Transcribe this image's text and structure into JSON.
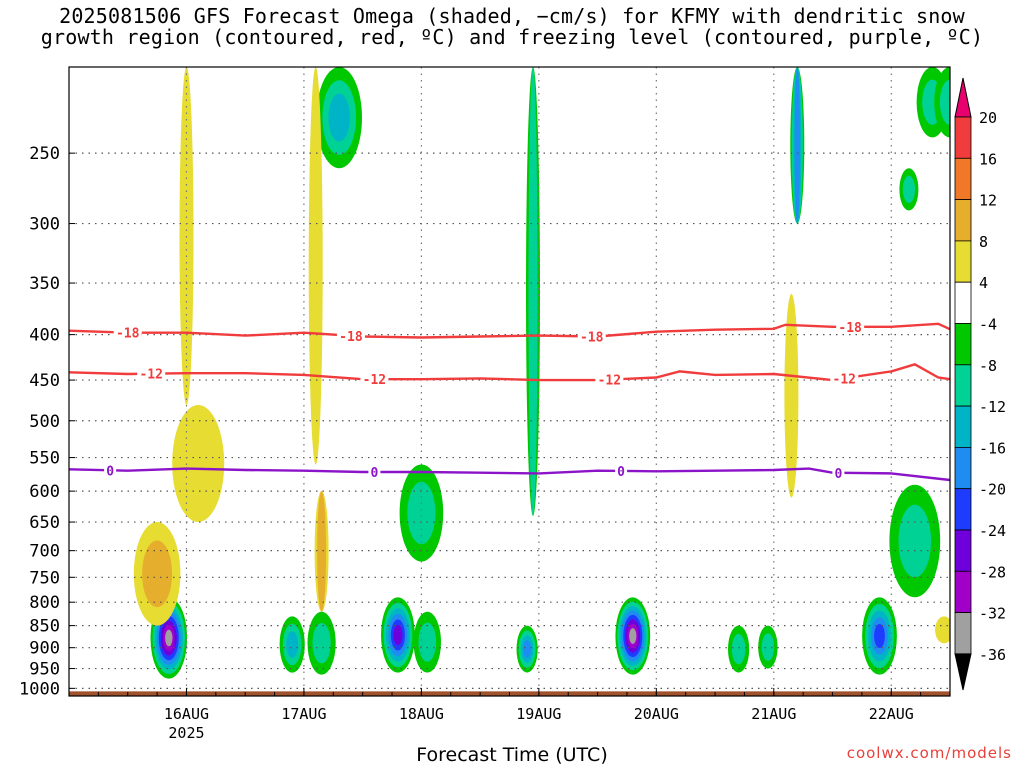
{
  "title_line1": "2025081506 GFS Forecast Omega (shaded, −cm/s) for KFMY with dendritic snow",
  "title_line2": "growth region (contoured, red, ºC) and freezing level (contoured, purple, ºC)",
  "credit": "coolwx.com/models",
  "chart_data": {
    "type": "heatmap",
    "title": "2025081506 GFS Forecast Omega (shaded, −cm/s) for KFMY with dendritic snow growth region (contoured, red, ºC) and freezing level (contoured, purple, ºC)",
    "xlabel": "Forecast Time (UTC)",
    "ylabel": "",
    "x_range": [
      "2025-08-15T06:00Z",
      "2025-08-22T18:00Z"
    ],
    "x_ticks": [
      {
        "label": "16AUG",
        "sub": "2025",
        "day": 1.0
      },
      {
        "label": "17AUG",
        "sub": "",
        "day": 2.0
      },
      {
        "label": "18AUG",
        "sub": "",
        "day": 3.0
      },
      {
        "label": "19AUG",
        "sub": "",
        "day": 4.0
      },
      {
        "label": "20AUG",
        "sub": "",
        "day": 5.0
      },
      {
        "label": "21AUG",
        "sub": "",
        "day": 6.0
      },
      {
        "label": "22AUG",
        "sub": "",
        "day": 7.0
      }
    ],
    "y_axis": "pressure (hPa), log scale, inverted",
    "y_range": [
      1020,
      200
    ],
    "y_ticks": [
      250,
      300,
      350,
      400,
      450,
      500,
      550,
      600,
      650,
      700,
      750,
      800,
      850,
      900,
      950,
      1000
    ],
    "grid": true,
    "colorbar": {
      "labels": [
        "20",
        "16",
        "12",
        "8",
        "4",
        "-4",
        "-8",
        "-12",
        "-16",
        "-20",
        "-24",
        "-28",
        "-32",
        "-36"
      ],
      "colors": [
        "#e8006e",
        "#f03c3c",
        "#f07828",
        "#e6ae2d",
        "#e6dc32",
        "#ffffff",
        "#00c800",
        "#00d296",
        "#00b4c8",
        "#1e8cf0",
        "#1e3cff",
        "#6e00dc",
        "#a000c8",
        "#a0a0a0",
        "#000000"
      ]
    },
    "contours": [
      {
        "name": "dendritic -18",
        "color": "#f03c3c",
        "label": "-18",
        "points": [
          [
            0.0,
            396
          ],
          [
            0.5,
            398
          ],
          [
            1.0,
            398
          ],
          [
            1.5,
            401
          ],
          [
            2.0,
            398
          ],
          [
            2.5,
            402
          ],
          [
            3.0,
            403
          ],
          [
            3.5,
            402
          ],
          [
            4.0,
            401
          ],
          [
            4.5,
            402
          ],
          [
            5.0,
            397
          ],
          [
            5.5,
            395
          ],
          [
            6.0,
            394
          ],
          [
            6.1,
            390
          ],
          [
            6.5,
            392
          ],
          [
            7.0,
            392
          ],
          [
            7.4,
            389
          ],
          [
            7.6,
            400
          ],
          [
            7.5,
            398
          ]
        ]
      },
      {
        "name": "dendritic -12",
        "color": "#f03c3c",
        "label": "-12",
        "points": [
          [
            0.0,
            441
          ],
          [
            0.5,
            443
          ],
          [
            1.0,
            442
          ],
          [
            1.5,
            442
          ],
          [
            2.0,
            444
          ],
          [
            2.5,
            449
          ],
          [
            3.0,
            449
          ],
          [
            3.5,
            448
          ],
          [
            4.0,
            450
          ],
          [
            4.5,
            450
          ],
          [
            5.0,
            447
          ],
          [
            5.2,
            440
          ],
          [
            5.5,
            444
          ],
          [
            6.0,
            443
          ],
          [
            6.5,
            450
          ],
          [
            7.0,
            440
          ],
          [
            7.2,
            432
          ],
          [
            7.4,
            447
          ],
          [
            7.5,
            449
          ]
        ]
      },
      {
        "name": "freezing level 0",
        "color": "#8c14c8",
        "label": "0",
        "points": [
          [
            0.0,
            567
          ],
          [
            0.5,
            569
          ],
          [
            1.0,
            566
          ],
          [
            1.5,
            568
          ],
          [
            2.0,
            569
          ],
          [
            2.5,
            571
          ],
          [
            3.0,
            571
          ],
          [
            3.5,
            572
          ],
          [
            4.0,
            573
          ],
          [
            4.5,
            569
          ],
          [
            5.0,
            570
          ],
          [
            5.5,
            569
          ],
          [
            6.0,
            568
          ],
          [
            6.3,
            566
          ],
          [
            6.5,
            572
          ],
          [
            7.0,
            573
          ],
          [
            7.5,
            583
          ]
        ]
      }
    ],
    "label_positions": [
      {
        "series": 0,
        "day": 0.5
      },
      {
        "series": 0,
        "day": 2.4
      },
      {
        "series": 0,
        "day": 4.45
      },
      {
        "series": 0,
        "day": 6.65
      },
      {
        "series": 1,
        "day": 0.7
      },
      {
        "series": 1,
        "day": 2.6
      },
      {
        "series": 1,
        "day": 4.6
      },
      {
        "series": 1,
        "day": 6.6
      },
      {
        "series": 2,
        "day": 0.35
      },
      {
        "series": 2,
        "day": 2.6
      },
      {
        "series": 2,
        "day": 4.7
      },
      {
        "series": 2,
        "day": 6.55
      }
    ],
    "omega_features": [
      {
        "day": 0.85,
        "p_top": 790,
        "p_bot": 975,
        "peak": -32
      },
      {
        "day": 1.0,
        "p_top": 200,
        "p_bot": 480,
        "peak": 4
      },
      {
        "day": 1.1,
        "p_top": 480,
        "p_bot": 650,
        "peak": 4
      },
      {
        "day": 0.75,
        "p_top": 650,
        "p_bot": 850,
        "peak": 8
      },
      {
        "day": 1.9,
        "p_top": 830,
        "p_bot": 960,
        "peak": -12
      },
      {
        "day": 2.15,
        "p_top": 820,
        "p_bot": 965,
        "peak": -8
      },
      {
        "day": 2.3,
        "p_top": 200,
        "p_bot": 260,
        "peak": -12
      },
      {
        "day": 2.1,
        "p_top": 200,
        "p_bot": 560,
        "peak": 4
      },
      {
        "day": 2.15,
        "p_top": 600,
        "p_bot": 820,
        "peak": 8
      },
      {
        "day": 2.8,
        "p_top": 790,
        "p_bot": 960,
        "peak": -24
      },
      {
        "day": 3.05,
        "p_top": 820,
        "p_bot": 960,
        "peak": -8
      },
      {
        "day": 3.0,
        "p_top": 560,
        "p_bot": 720,
        "peak": -8
      },
      {
        "day": 3.9,
        "p_top": 850,
        "p_bot": 960,
        "peak": -16
      },
      {
        "day": 3.95,
        "p_top": 200,
        "p_bot": 640,
        "peak": -8
      },
      {
        "day": 4.8,
        "p_top": 790,
        "p_bot": 965,
        "peak": -32
      },
      {
        "day": 5.7,
        "p_top": 850,
        "p_bot": 960,
        "peak": -8
      },
      {
        "day": 5.95,
        "p_top": 850,
        "p_bot": 950,
        "peak": -8
      },
      {
        "day": 6.2,
        "p_top": 200,
        "p_bot": 300,
        "peak": -16
      },
      {
        "day": 6.15,
        "p_top": 360,
        "p_bot": 610,
        "peak": 4
      },
      {
        "day": 6.9,
        "p_top": 790,
        "p_bot": 965,
        "peak": -20
      },
      {
        "day": 7.35,
        "p_top": 200,
        "p_bot": 240,
        "peak": -8
      },
      {
        "day": 7.15,
        "p_top": 260,
        "p_bot": 290,
        "peak": -8
      },
      {
        "day": 7.2,
        "p_top": 590,
        "p_bot": 790,
        "peak": -8
      },
      {
        "day": 7.5,
        "p_top": 200,
        "p_bot": 240,
        "peak": -8
      },
      {
        "day": 7.45,
        "p_top": 830,
        "p_bot": 890,
        "peak": 4
      }
    ]
  }
}
